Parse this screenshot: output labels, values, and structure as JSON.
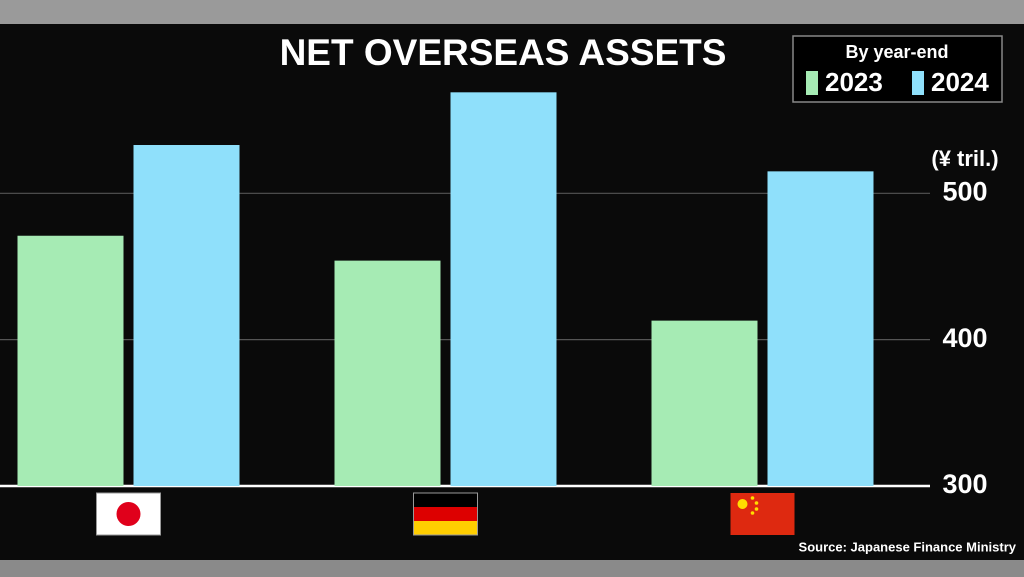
{
  "chart_data": {
    "type": "bar",
    "title": "NET OVERSEAS ASSETS",
    "legend_title": "By year-end",
    "y_label": "(¥ tril.)",
    "source": "Source: Japanese Finance Ministry",
    "categories": [
      null,
      null,
      null
    ],
    "series": [
      {
        "name": "2023",
        "color": "#a6ebb4",
        "values": [
          471,
          454,
          413
        ]
      },
      {
        "name": "2024",
        "color": "#8fe0fb",
        "values": [
          533,
          569,
          515
        ]
      }
    ],
    "ylim": [
      300,
      615
    ],
    "yticks": [
      300,
      400,
      500
    ],
    "grid": true,
    "legend_position": "top-right"
  }
}
